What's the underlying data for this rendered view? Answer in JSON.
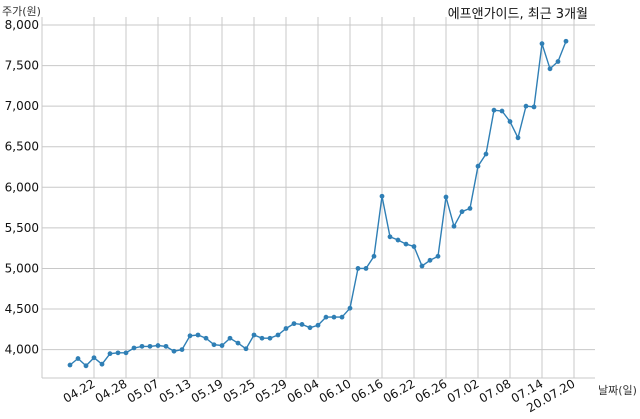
{
  "chart_data": {
    "type": "line",
    "title": "에프앤가이드, 최근 3개월",
    "ylabel": "주가(원)",
    "xlabel": "날짜(일)",
    "ylim": [
      3650,
      8000
    ],
    "yticks": [
      4000,
      4500,
      5000,
      5500,
      6000,
      6500,
      7000,
      7500,
      8000
    ],
    "ytick_labels": [
      "4,000",
      "4,500",
      "5,000",
      "5,500",
      "6,000",
      "6,500",
      "7,000",
      "7,500",
      "8,000"
    ],
    "xtick_labels": [
      "04.22",
      "04.28",
      "05.07",
      "05.13",
      "05.19",
      "05.25",
      "05.29",
      "06.04",
      "06.10",
      "06.16",
      "06.22",
      "06.26",
      "07.02",
      "07.08",
      "07.14",
      "20.07.20"
    ],
    "xtick_index": [
      3,
      7,
      11,
      15,
      19,
      23,
      27,
      31,
      35,
      39,
      43,
      47,
      51,
      55,
      59,
      63
    ],
    "grid": true,
    "colors": {
      "series": "#2f7fb5"
    },
    "series": [
      {
        "values": [
          3810,
          3890,
          3800,
          3900,
          3820,
          3950,
          3960,
          3960,
          4020,
          4040,
          4040,
          4050,
          4040,
          3980,
          4000,
          4170,
          4180,
          4140,
          4060,
          4050,
          4140,
          4080,
          4010,
          4180,
          4140,
          4140,
          4180,
          4260,
          4320,
          4310,
          4270,
          4300,
          4400,
          4400,
          4400,
          4510,
          5000,
          5000,
          5150,
          5890,
          5390,
          5350,
          5300,
          5270,
          5030,
          5100,
          5150,
          5880,
          5520,
          5700,
          5740,
          6260,
          6410,
          6950,
          6940,
          6810,
          6610,
          7000,
          6990,
          7770,
          7460,
          7550,
          7800
        ]
      }
    ]
  }
}
